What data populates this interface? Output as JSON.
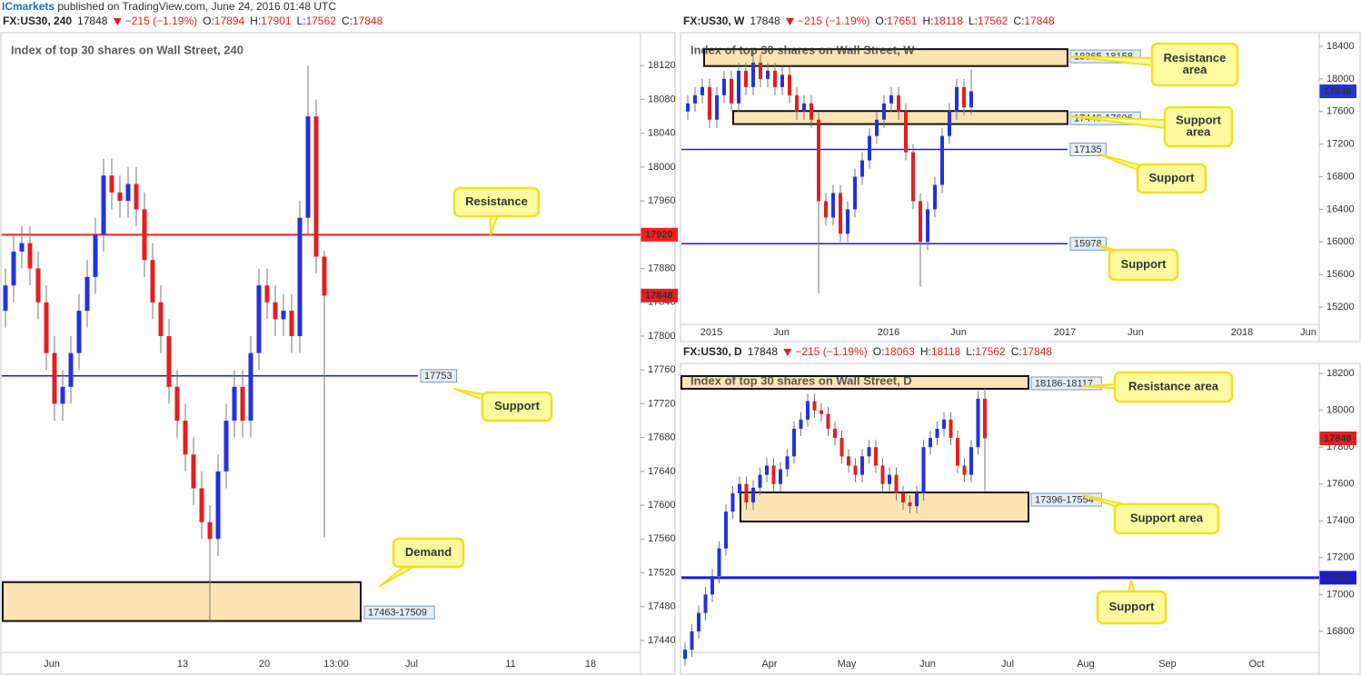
{
  "header": {
    "brand": "ICmarkets",
    "text": " published on TradingView.com, June 24, 2016 01:48 UTC"
  },
  "chart_data": [
    {
      "type": "candlestick",
      "symbol": "FX:US30, 240",
      "title": "Index of top 30 shares on Wall Street, 240",
      "last": 17848,
      "change": "−215 (−1.19%)",
      "stats": [
        {
          "label": "O:",
          "value": 17894
        },
        {
          "label": "H:",
          "value": 17901
        },
        {
          "label": "L:",
          "value": 17562
        },
        {
          "label": "C:",
          "value": 17848
        }
      ],
      "last_color": "#e51e1e",
      "up_color": "#2233dd",
      "down_color": "#e51e1e",
      "ylim": [
        17426,
        18160
      ],
      "yticks": [
        17440,
        17480,
        17520,
        17560,
        17600,
        17640,
        17680,
        17720,
        17760,
        17800,
        17840,
        17880,
        17920,
        17960,
        18000,
        18040,
        18080,
        18120
      ],
      "xlabels": [
        "Jun",
        "13",
        "20",
        "13:00",
        "Jul",
        "11",
        "18"
      ],
      "open": [
        17830,
        17860,
        17900,
        17910,
        17880,
        17840,
        17780,
        17720,
        17740,
        17780,
        17830,
        17870,
        17920,
        17990,
        17970,
        17960,
        17980,
        17950,
        17890,
        17840,
        17800,
        17740,
        17700,
        17660,
        17620,
        17580,
        17560,
        17640,
        17700,
        17740,
        17700,
        17780,
        17860,
        17840,
        17820,
        17830,
        17800,
        17940,
        18060,
        17894
      ],
      "high": [
        17880,
        17920,
        17930,
        17930,
        17900,
        17860,
        17800,
        17760,
        17800,
        17850,
        17890,
        17940,
        18010,
        18010,
        17990,
        18000,
        18000,
        17970,
        17910,
        17860,
        17820,
        17760,
        17720,
        17680,
        17640,
        17600,
        17660,
        17720,
        17760,
        17760,
        17800,
        17880,
        17880,
        17860,
        17850,
        17850,
        17960,
        18120,
        18080,
        17901
      ],
      "low": [
        17810,
        17840,
        17880,
        17860,
        17820,
        17760,
        17700,
        17700,
        17720,
        17760,
        17810,
        17850,
        17900,
        17950,
        17940,
        17940,
        17930,
        17870,
        17820,
        17780,
        17720,
        17680,
        17640,
        17600,
        17560,
        17463,
        17540,
        17620,
        17680,
        17680,
        17680,
        17760,
        17820,
        17800,
        17800,
        17780,
        17780,
        17920,
        17874,
        17562
      ],
      "close": [
        17860,
        17900,
        17910,
        17880,
        17840,
        17780,
        17720,
        17740,
        17780,
        17830,
        17870,
        17920,
        17990,
        17970,
        17960,
        17980,
        17950,
        17890,
        17840,
        17800,
        17740,
        17700,
        17660,
        17620,
        17580,
        17560,
        17640,
        17700,
        17740,
        17700,
        17780,
        17860,
        17840,
        17820,
        17830,
        17800,
        17940,
        18060,
        17894,
        17848
      ],
      "levels": [
        {
          "value": 17920,
          "color": "#ff1a1a"
        },
        {
          "value": 17753,
          "color": "#1a1adf"
        }
      ],
      "zones": [
        {
          "high": 17509,
          "low": 17463,
          "label": "17463-17509"
        }
      ],
      "callouts": [
        {
          "lines": [
            "Resistance"
          ]
        },
        {
          "lines": [
            "Support"
          ]
        },
        {
          "lines": [
            "Demand"
          ]
        }
      ]
    },
    {
      "type": "candlestick",
      "symbol": "FX:US30, W",
      "title": "Index of top 30 shares on Wall Street, W",
      "last": 17848,
      "change": "−215 (−1.19%)",
      "stats": [
        {
          "label": "O:",
          "value": 17651
        },
        {
          "label": "H:",
          "value": 18118
        },
        {
          "label": "L:",
          "value": 17562
        },
        {
          "label": "C:",
          "value": 17848
        }
      ],
      "last_color": "#2233dd",
      "up_color": "#2233dd",
      "down_color": "#e51e1e",
      "ylim": [
        14989,
        18567
      ],
      "yticks": [
        15200,
        15600,
        16000,
        16400,
        16800,
        17200,
        17600,
        18000,
        18400
      ],
      "xlabels": [
        "2015",
        "Jun",
        "2016",
        "Jun",
        "2017",
        "Jun",
        "2018",
        "Jun"
      ],
      "open": [
        17600,
        17700,
        17800,
        17900,
        17500,
        17800,
        18000,
        17700,
        18100,
        17900,
        18200,
        18000,
        18100,
        17900,
        18050,
        17800,
        17600,
        17700,
        17500,
        16500,
        16300,
        16600,
        16100,
        16400,
        16800,
        17000,
        17300,
        17500,
        17700,
        17800,
        17600,
        17100,
        16500,
        16000,
        16400,
        16700,
        17300,
        17600,
        17900,
        17651
      ],
      "high": [
        17800,
        17900,
        18000,
        18000,
        17900,
        18100,
        18100,
        18200,
        18200,
        18350,
        18300,
        18200,
        18200,
        18150,
        18150,
        17900,
        17800,
        17800,
        17600,
        16600,
        16700,
        16700,
        16500,
        16900,
        17100,
        17400,
        17600,
        17800,
        17900,
        17900,
        17700,
        17200,
        16600,
        16500,
        16800,
        17400,
        17700,
        18000,
        18000,
        18118
      ],
      "low": [
        17500,
        17600,
        17700,
        17400,
        17400,
        17700,
        17600,
        17600,
        17800,
        17800,
        17900,
        17900,
        17800,
        17800,
        17700,
        17500,
        17500,
        17400,
        15370,
        16200,
        16200,
        16000,
        16000,
        16300,
        16700,
        16900,
        17200,
        17400,
        17600,
        17500,
        17000,
        16400,
        15450,
        15900,
        16300,
        16600,
        17200,
        17500,
        17551,
        17562
      ],
      "close": [
        17700,
        17800,
        17900,
        17500,
        17800,
        18000,
        17700,
        18100,
        17900,
        18200,
        18000,
        18100,
        17900,
        18050,
        17800,
        17600,
        17700,
        17500,
        16500,
        16300,
        16600,
        16100,
        16400,
        16800,
        17000,
        17300,
        17500,
        17700,
        17800,
        17600,
        17100,
        16500,
        16000,
        16400,
        16700,
        17300,
        17600,
        17900,
        17651,
        17848
      ],
      "levels": [
        {
          "value": 17135,
          "color": "#1a1adf"
        },
        {
          "value": 15978,
          "color": "#1a1adf"
        }
      ],
      "zones": [
        {
          "high": 18365,
          "low": 18158,
          "label": "18365-18158"
        },
        {
          "high": 17606,
          "low": 17446,
          "label": "17446-17606"
        }
      ],
      "callouts": [
        {
          "lines": [
            "Resistance",
            "area"
          ]
        },
        {
          "lines": [
            "Support",
            "area"
          ]
        },
        {
          "lines": [
            "Support"
          ]
        },
        {
          "lines": [
            "Support"
          ]
        }
      ]
    },
    {
      "type": "candlestick",
      "symbol": "FX:US30, D",
      "title": "Index of top 30 shares on Wall Street, D",
      "last": 17848,
      "change": "−215 (−1.19%)",
      "stats": [
        {
          "label": "O:",
          "value": 18063
        },
        {
          "label": "H:",
          "value": 18118
        },
        {
          "label": "L:",
          "value": 17562
        },
        {
          "label": "C:",
          "value": 17848
        }
      ],
      "last_color": "#e51e1e",
      "up_color": "#2233dd",
      "down_color": "#e51e1e",
      "ylim": [
        16686,
        18250
      ],
      "yticks": [
        16800,
        17000,
        17200,
        17400,
        17600,
        17800,
        18000,
        18200
      ],
      "xlabels": [
        "Apr",
        "May",
        "Jun",
        "Jul",
        "Aug",
        "Sep",
        "Oct"
      ],
      "open": [
        16650,
        16700,
        16800,
        16900,
        17000,
        17100,
        17250,
        17450,
        17550,
        17600,
        17500,
        17580,
        17650,
        17700,
        17600,
        17680,
        17750,
        17900,
        17950,
        18050,
        18000,
        17980,
        17900,
        17850,
        17750,
        17700,
        17650,
        17750,
        17800,
        17700,
        17600,
        17650,
        17550,
        17500,
        17480,
        17550,
        17800,
        17850,
        17900,
        17950,
        17850,
        17700,
        17650,
        17800,
        18063
      ],
      "high": [
        16740,
        16840,
        16940,
        17040,
        17140,
        17290,
        17490,
        17590,
        17640,
        17640,
        17620,
        17690,
        17740,
        17740,
        17720,
        17790,
        17940,
        17990,
        18090,
        18090,
        18040,
        18020,
        17940,
        17890,
        17790,
        17740,
        17790,
        17840,
        17840,
        17740,
        17690,
        17690,
        17590,
        17540,
        17590,
        17840,
        17890,
        17940,
        17990,
        17990,
        17890,
        17740,
        17840,
        18103,
        18118
      ],
      "low": [
        16610,
        16660,
        16760,
        16860,
        16960,
        17060,
        17210,
        17410,
        17510,
        17460,
        17460,
        17540,
        17610,
        17560,
        17560,
        17640,
        17710,
        17860,
        17910,
        17960,
        17940,
        17860,
        17810,
        17710,
        17660,
        17610,
        17610,
        17710,
        17660,
        17560,
        17560,
        17510,
        17460,
        17440,
        17440,
        17510,
        17760,
        17810,
        17860,
        17810,
        17660,
        17610,
        17610,
        17760,
        17562
      ],
      "close": [
        16700,
        16800,
        16900,
        17000,
        17100,
        17250,
        17450,
        17550,
        17600,
        17500,
        17580,
        17650,
        17700,
        17600,
        17680,
        17750,
        17900,
        17950,
        18050,
        18000,
        17980,
        17900,
        17850,
        17750,
        17700,
        17650,
        17750,
        17800,
        17700,
        17600,
        17650,
        17550,
        17500,
        17480,
        17550,
        17800,
        17850,
        17900,
        17950,
        17850,
        17700,
        17650,
        17800,
        18063,
        17848
      ],
      "levels": [
        {
          "value": 17091,
          "color": "#1a1adf"
        }
      ],
      "zones": [
        {
          "high": 18186,
          "low": 18117,
          "label": "18186-18117"
        },
        {
          "high": 17554,
          "low": 17396,
          "label": "17396-17554"
        }
      ],
      "callouts": [
        {
          "lines": [
            "Resistance area"
          ]
        },
        {
          "lines": [
            "Support area"
          ]
        },
        {
          "lines": [
            "Support"
          ]
        }
      ]
    }
  ]
}
